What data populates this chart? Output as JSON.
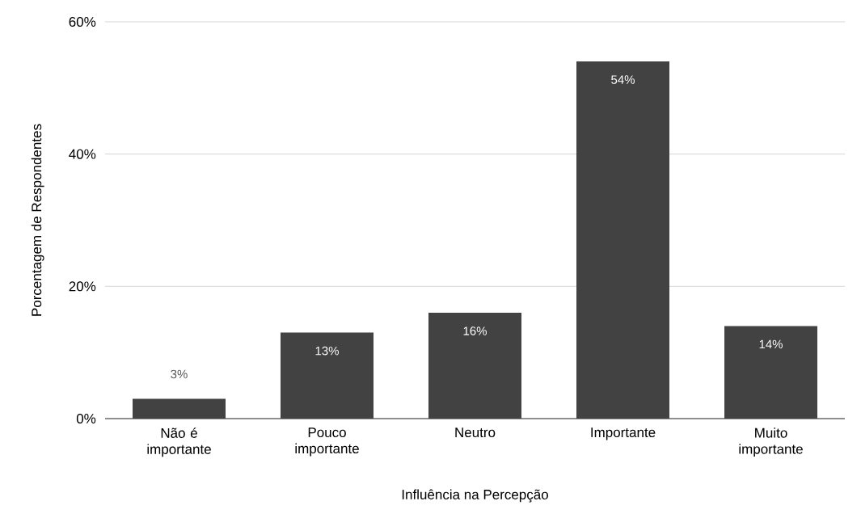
{
  "chart_data": {
    "type": "bar",
    "xlabel": "Influência na Percepção",
    "ylabel": "Porcentagem de Respondentes",
    "categories": [
      "Não é importante",
      "Pouco importante",
      "Neutro",
      "Importante",
      "Muito importante"
    ],
    "values": [
      3,
      13,
      16,
      54,
      14
    ],
    "value_labels": [
      "3%",
      "13%",
      "16%",
      "54%",
      "14%"
    ],
    "color": "#424242",
    "ylim": [
      0,
      60
    ],
    "yticks": [
      {
        "value": 0,
        "label": "0%"
      },
      {
        "value": 20,
        "label": "20%"
      },
      {
        "value": 40,
        "label": "40%"
      },
      {
        "value": 60,
        "label": "60%"
      }
    ],
    "grid": "y"
  }
}
